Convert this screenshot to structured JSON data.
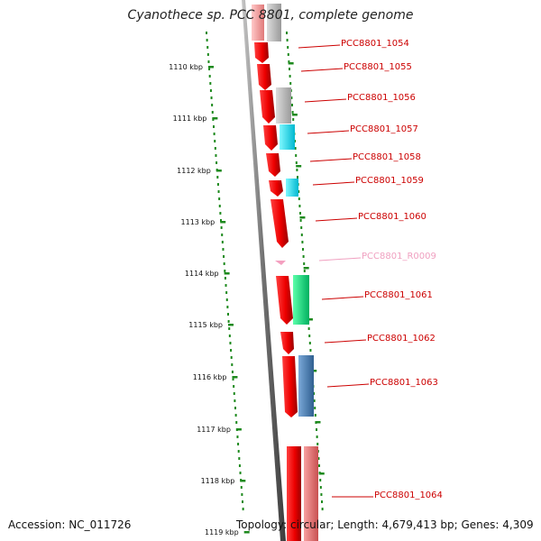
{
  "title": "Cyanothece sp. PCC 8801, complete genome",
  "footer": {
    "accession": "Accession: NC_011726",
    "summary": "Topology: circular; Length: 4,679,413 bp; Genes: 4,309"
  },
  "scale": {
    "ticks": [
      "1110 kbp",
      "1111 kbp",
      "1112 kbp",
      "1113 kbp",
      "1114 kbp",
      "1115 kbp",
      "1116 kbp",
      "1117 kbp",
      "1118 kbp",
      "1119 kbp"
    ]
  },
  "genes": [
    {
      "label": "PCC8801_1054",
      "color": "#cc0000"
    },
    {
      "label": "PCC8801_1055",
      "color": "#cc0000"
    },
    {
      "label": "PCC8801_1056",
      "color": "#cc0000"
    },
    {
      "label": "PCC8801_1057",
      "color": "#cc0000"
    },
    {
      "label": "PCC8801_1058",
      "color": "#cc0000"
    },
    {
      "label": "PCC8801_1059",
      "color": "#cc0000"
    },
    {
      "label": "PCC8801_1060",
      "color": "#cc0000"
    },
    {
      "label": "PCC8801_R0009",
      "color": "#f0a0c0"
    },
    {
      "label": "PCC8801_1061",
      "color": "#cc0000"
    },
    {
      "label": "PCC8801_1062",
      "color": "#cc0000"
    },
    {
      "label": "PCC8801_1063",
      "color": "#cc0000"
    },
    {
      "label": "PCC8801_1064",
      "color": "#cc0000"
    }
  ]
}
